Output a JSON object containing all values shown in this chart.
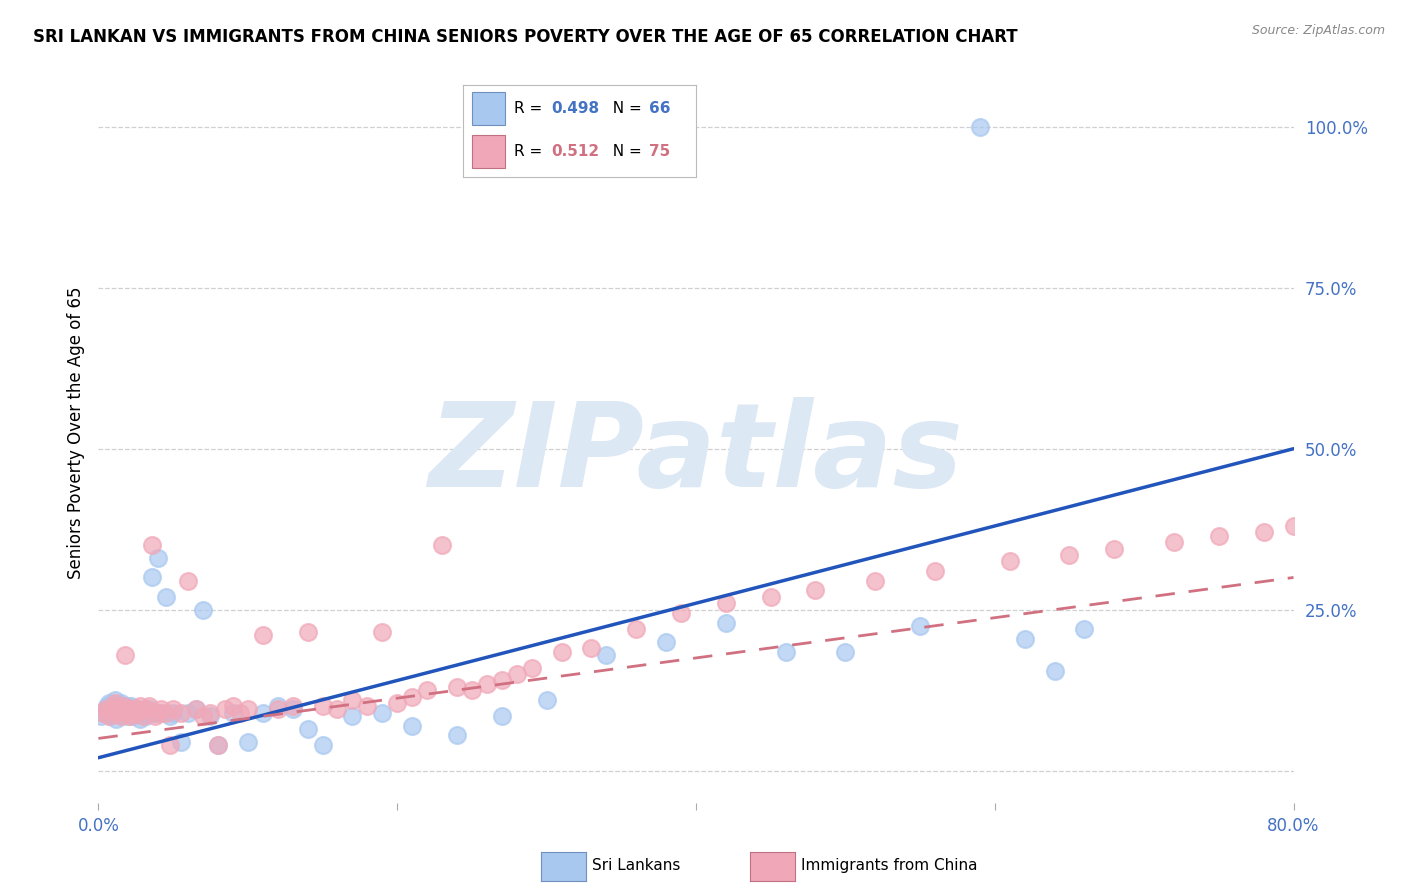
{
  "title": "SRI LANKAN VS IMMIGRANTS FROM CHINA SENIORS POVERTY OVER THE AGE OF 65 CORRELATION CHART",
  "source": "Source: ZipAtlas.com",
  "ylabel": "Seniors Poverty Over the Age of 65",
  "xlim": [
    0.0,
    0.8
  ],
  "ylim": [
    -0.05,
    1.1
  ],
  "xtick_positions": [
    0.0,
    0.2,
    0.4,
    0.6,
    0.8
  ],
  "xtick_labels": [
    "0.0%",
    "",
    "",
    "",
    "80.0%"
  ],
  "ytick_positions": [
    0.0,
    0.25,
    0.5,
    0.75,
    1.0
  ],
  "ytick_labels": [
    "",
    "25.0%",
    "50.0%",
    "75.0%",
    "100.0%"
  ],
  "grid_color": "#d0d0d0",
  "bg_color": "#ffffff",
  "tick_color": "#4472c4",
  "sri_scatter_color": "#a8c8f0",
  "china_scatter_color": "#f0a8b8",
  "sri_line_color": "#2255bb",
  "china_line_color": "#d07080",
  "r1": "0.498",
  "n1": "66",
  "r2": "0.512",
  "n2": "75",
  "label1": "Sri Lankans",
  "label2": "Immigrants from China",
  "watermark_color": "#dde8f5",
  "sri_x": [
    0.002,
    0.004,
    0.005,
    0.006,
    0.007,
    0.008,
    0.009,
    0.01,
    0.01,
    0.011,
    0.012,
    0.013,
    0.014,
    0.015,
    0.015,
    0.016,
    0.017,
    0.018,
    0.019,
    0.02,
    0.02,
    0.021,
    0.022,
    0.023,
    0.025,
    0.026,
    0.028,
    0.03,
    0.032,
    0.034,
    0.036,
    0.038,
    0.04,
    0.042,
    0.045,
    0.048,
    0.05,
    0.055,
    0.06,
    0.065,
    0.07,
    0.075,
    0.08,
    0.09,
    0.1,
    0.11,
    0.12,
    0.13,
    0.14,
    0.15,
    0.17,
    0.19,
    0.21,
    0.24,
    0.27,
    0.3,
    0.34,
    0.38,
    0.42,
    0.46,
    0.5,
    0.55,
    0.59,
    0.62,
    0.64,
    0.66
  ],
  "sri_y": [
    0.085,
    0.09,
    0.095,
    0.1,
    0.105,
    0.085,
    0.09,
    0.095,
    0.1,
    0.11,
    0.08,
    0.09,
    0.095,
    0.1,
    0.105,
    0.085,
    0.09,
    0.095,
    0.1,
    0.085,
    0.09,
    0.095,
    0.1,
    0.085,
    0.09,
    0.095,
    0.08,
    0.09,
    0.085,
    0.095,
    0.3,
    0.09,
    0.33,
    0.09,
    0.27,
    0.085,
    0.09,
    0.045,
    0.09,
    0.095,
    0.25,
    0.085,
    0.04,
    0.09,
    0.045,
    0.09,
    0.1,
    0.095,
    0.065,
    0.04,
    0.085,
    0.09,
    0.07,
    0.055,
    0.085,
    0.11,
    0.18,
    0.2,
    0.23,
    0.185,
    0.185,
    0.225,
    1.0,
    0.205,
    0.155,
    0.22
  ],
  "china_x": [
    0.003,
    0.005,
    0.007,
    0.008,
    0.01,
    0.011,
    0.012,
    0.013,
    0.015,
    0.016,
    0.017,
    0.018,
    0.019,
    0.02,
    0.021,
    0.022,
    0.023,
    0.025,
    0.026,
    0.028,
    0.03,
    0.032,
    0.034,
    0.036,
    0.038,
    0.04,
    0.042,
    0.045,
    0.048,
    0.05,
    0.055,
    0.06,
    0.065,
    0.07,
    0.075,
    0.08,
    0.085,
    0.09,
    0.095,
    0.1,
    0.11,
    0.12,
    0.13,
    0.14,
    0.15,
    0.16,
    0.17,
    0.18,
    0.19,
    0.2,
    0.21,
    0.22,
    0.23,
    0.24,
    0.25,
    0.26,
    0.27,
    0.28,
    0.29,
    0.31,
    0.33,
    0.36,
    0.39,
    0.42,
    0.45,
    0.48,
    0.52,
    0.56,
    0.61,
    0.65,
    0.68,
    0.72,
    0.75,
    0.78,
    0.8
  ],
  "china_y": [
    0.09,
    0.095,
    0.085,
    0.095,
    0.1,
    0.105,
    0.09,
    0.095,
    0.085,
    0.095,
    0.1,
    0.18,
    0.09,
    0.095,
    0.085,
    0.09,
    0.095,
    0.09,
    0.095,
    0.1,
    0.085,
    0.095,
    0.1,
    0.35,
    0.085,
    0.09,
    0.095,
    0.09,
    0.04,
    0.095,
    0.09,
    0.295,
    0.095,
    0.085,
    0.09,
    0.04,
    0.095,
    0.1,
    0.09,
    0.095,
    0.21,
    0.095,
    0.1,
    0.215,
    0.1,
    0.095,
    0.11,
    0.1,
    0.215,
    0.105,
    0.115,
    0.125,
    0.35,
    0.13,
    0.125,
    0.135,
    0.14,
    0.15,
    0.16,
    0.185,
    0.19,
    0.22,
    0.245,
    0.26,
    0.27,
    0.28,
    0.295,
    0.31,
    0.325,
    0.335,
    0.345,
    0.355,
    0.365,
    0.37,
    0.38
  ],
  "sri_line_x0": 0.0,
  "sri_line_y0": 0.02,
  "sri_line_x1": 0.8,
  "sri_line_y1": 0.5,
  "china_line_x0": 0.0,
  "china_line_y0": 0.05,
  "china_line_x1": 0.8,
  "china_line_y1": 0.3
}
